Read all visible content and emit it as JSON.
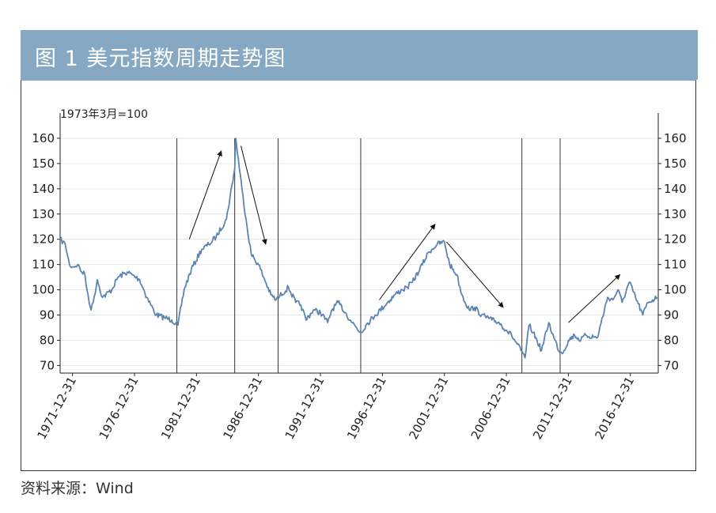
{
  "header": {
    "title": "图 1  美元指数周期走势图"
  },
  "source": "资料来源：Wind",
  "chart_data": {
    "type": "line",
    "title": "美元指数周期走势图",
    "unit_label": "1973年3月=100",
    "ylim": [
      67,
      170
    ],
    "yticks": [
      70,
      80,
      90,
      100,
      110,
      120,
      130,
      140,
      150,
      160
    ],
    "xlim": [
      "1971-01-01",
      "2019-03-31"
    ],
    "xticks": [
      "1971-12-31",
      "1976-12-31",
      "1981-12-31",
      "1986-12-31",
      "1991-12-31",
      "1996-12-31",
      "2001-12-31",
      "2006-12-31",
      "2011-12-31",
      "2016-12-31"
    ],
    "grid": true,
    "line_color": "#5b84b1",
    "series": [
      {
        "x": [
          "1971-01",
          "1971-06",
          "1971-10",
          "1972-01",
          "1972-06",
          "1972-10",
          "1973-01",
          "1973-03",
          "1973-07",
          "1973-09",
          "1974-01",
          "1974-06",
          "1975-03",
          "1975-09",
          "1976-06",
          "1977-06",
          "1978-01",
          "1978-10",
          "1979-06",
          "1980-01",
          "1980-07",
          "1981-01",
          "1981-08",
          "1982-06",
          "1983-01",
          "1983-08",
          "1984-06",
          "1985-02",
          "1985-03",
          "1985-09",
          "1986-01",
          "1986-06",
          "1987-01",
          "1987-06",
          "1988-01",
          "1988-06",
          "1989-06",
          "1990-01",
          "1990-06",
          "1990-11",
          "1991-06",
          "1992-01",
          "1992-08",
          "1992-12",
          "1993-06",
          "1994-01",
          "1994-06",
          "1995-04",
          "1995-09",
          "1996-06",
          "1997-06",
          "1998-01",
          "1998-08",
          "1999-01",
          "1999-06",
          "2000-01",
          "2000-10",
          "2001-06",
          "2002-01",
          "2002-06",
          "2003-01",
          "2003-06",
          "2004-01",
          "2004-06",
          "2005-01",
          "2005-11",
          "2006-06",
          "2007-01",
          "2007-06",
          "2008-03",
          "2008-07",
          "2008-11",
          "2009-03",
          "2009-11",
          "2010-06",
          "2010-11",
          "2011-05",
          "2011-09",
          "2012-01",
          "2012-07",
          "2013-01",
          "2013-06",
          "2014-05",
          "2015-03",
          "2015-08",
          "2016-01",
          "2016-05",
          "2016-12",
          "2017-06",
          "2018-01",
          "2018-06",
          "2019-03"
        ],
        "y": [
          120,
          118,
          110,
          109,
          110,
          107,
          106,
          100,
          92,
          95,
          104,
          97,
          100,
          105,
          107,
          104,
          97,
          90,
          89,
          88,
          86,
          100,
          108,
          116,
          118,
          121,
          128,
          148,
          160,
          140,
          128,
          114,
          110,
          105,
          98,
          96,
          101,
          95,
          94,
          88,
          92,
          91,
          87,
          92,
          95,
          91,
          88,
          83,
          86,
          90,
          95,
          98,
          100,
          101,
          103,
          108,
          115,
          118,
          119,
          110,
          106,
          98,
          92,
          93,
          90,
          88,
          87,
          84,
          82,
          76,
          73,
          86,
          83,
          76,
          87,
          81,
          75,
          76,
          80,
          82,
          80,
          82,
          81,
          97,
          96,
          100,
          95,
          103,
          97,
          90,
          95,
          97
        ]
      }
    ],
    "vertical_lines": [
      "1980-06",
      "1985-02",
      "1988-08",
      "1995-04",
      "2008-04",
      "2011-05"
    ],
    "arrows": [
      {
        "from": [
          "1981-06",
          120
        ],
        "to": [
          "1984-01",
          155
        ]
      },
      {
        "from": [
          "1985-08",
          157
        ],
        "to": [
          "1987-08",
          118
        ]
      },
      {
        "from": [
          "1996-10",
          96
        ],
        "to": [
          "2001-04",
          126
        ]
      },
      {
        "from": [
          "2002-03",
          119
        ],
        "to": [
          "2006-10",
          93
        ]
      },
      {
        "from": [
          "2012-01",
          87
        ],
        "to": [
          "2016-03",
          106
        ]
      }
    ]
  }
}
